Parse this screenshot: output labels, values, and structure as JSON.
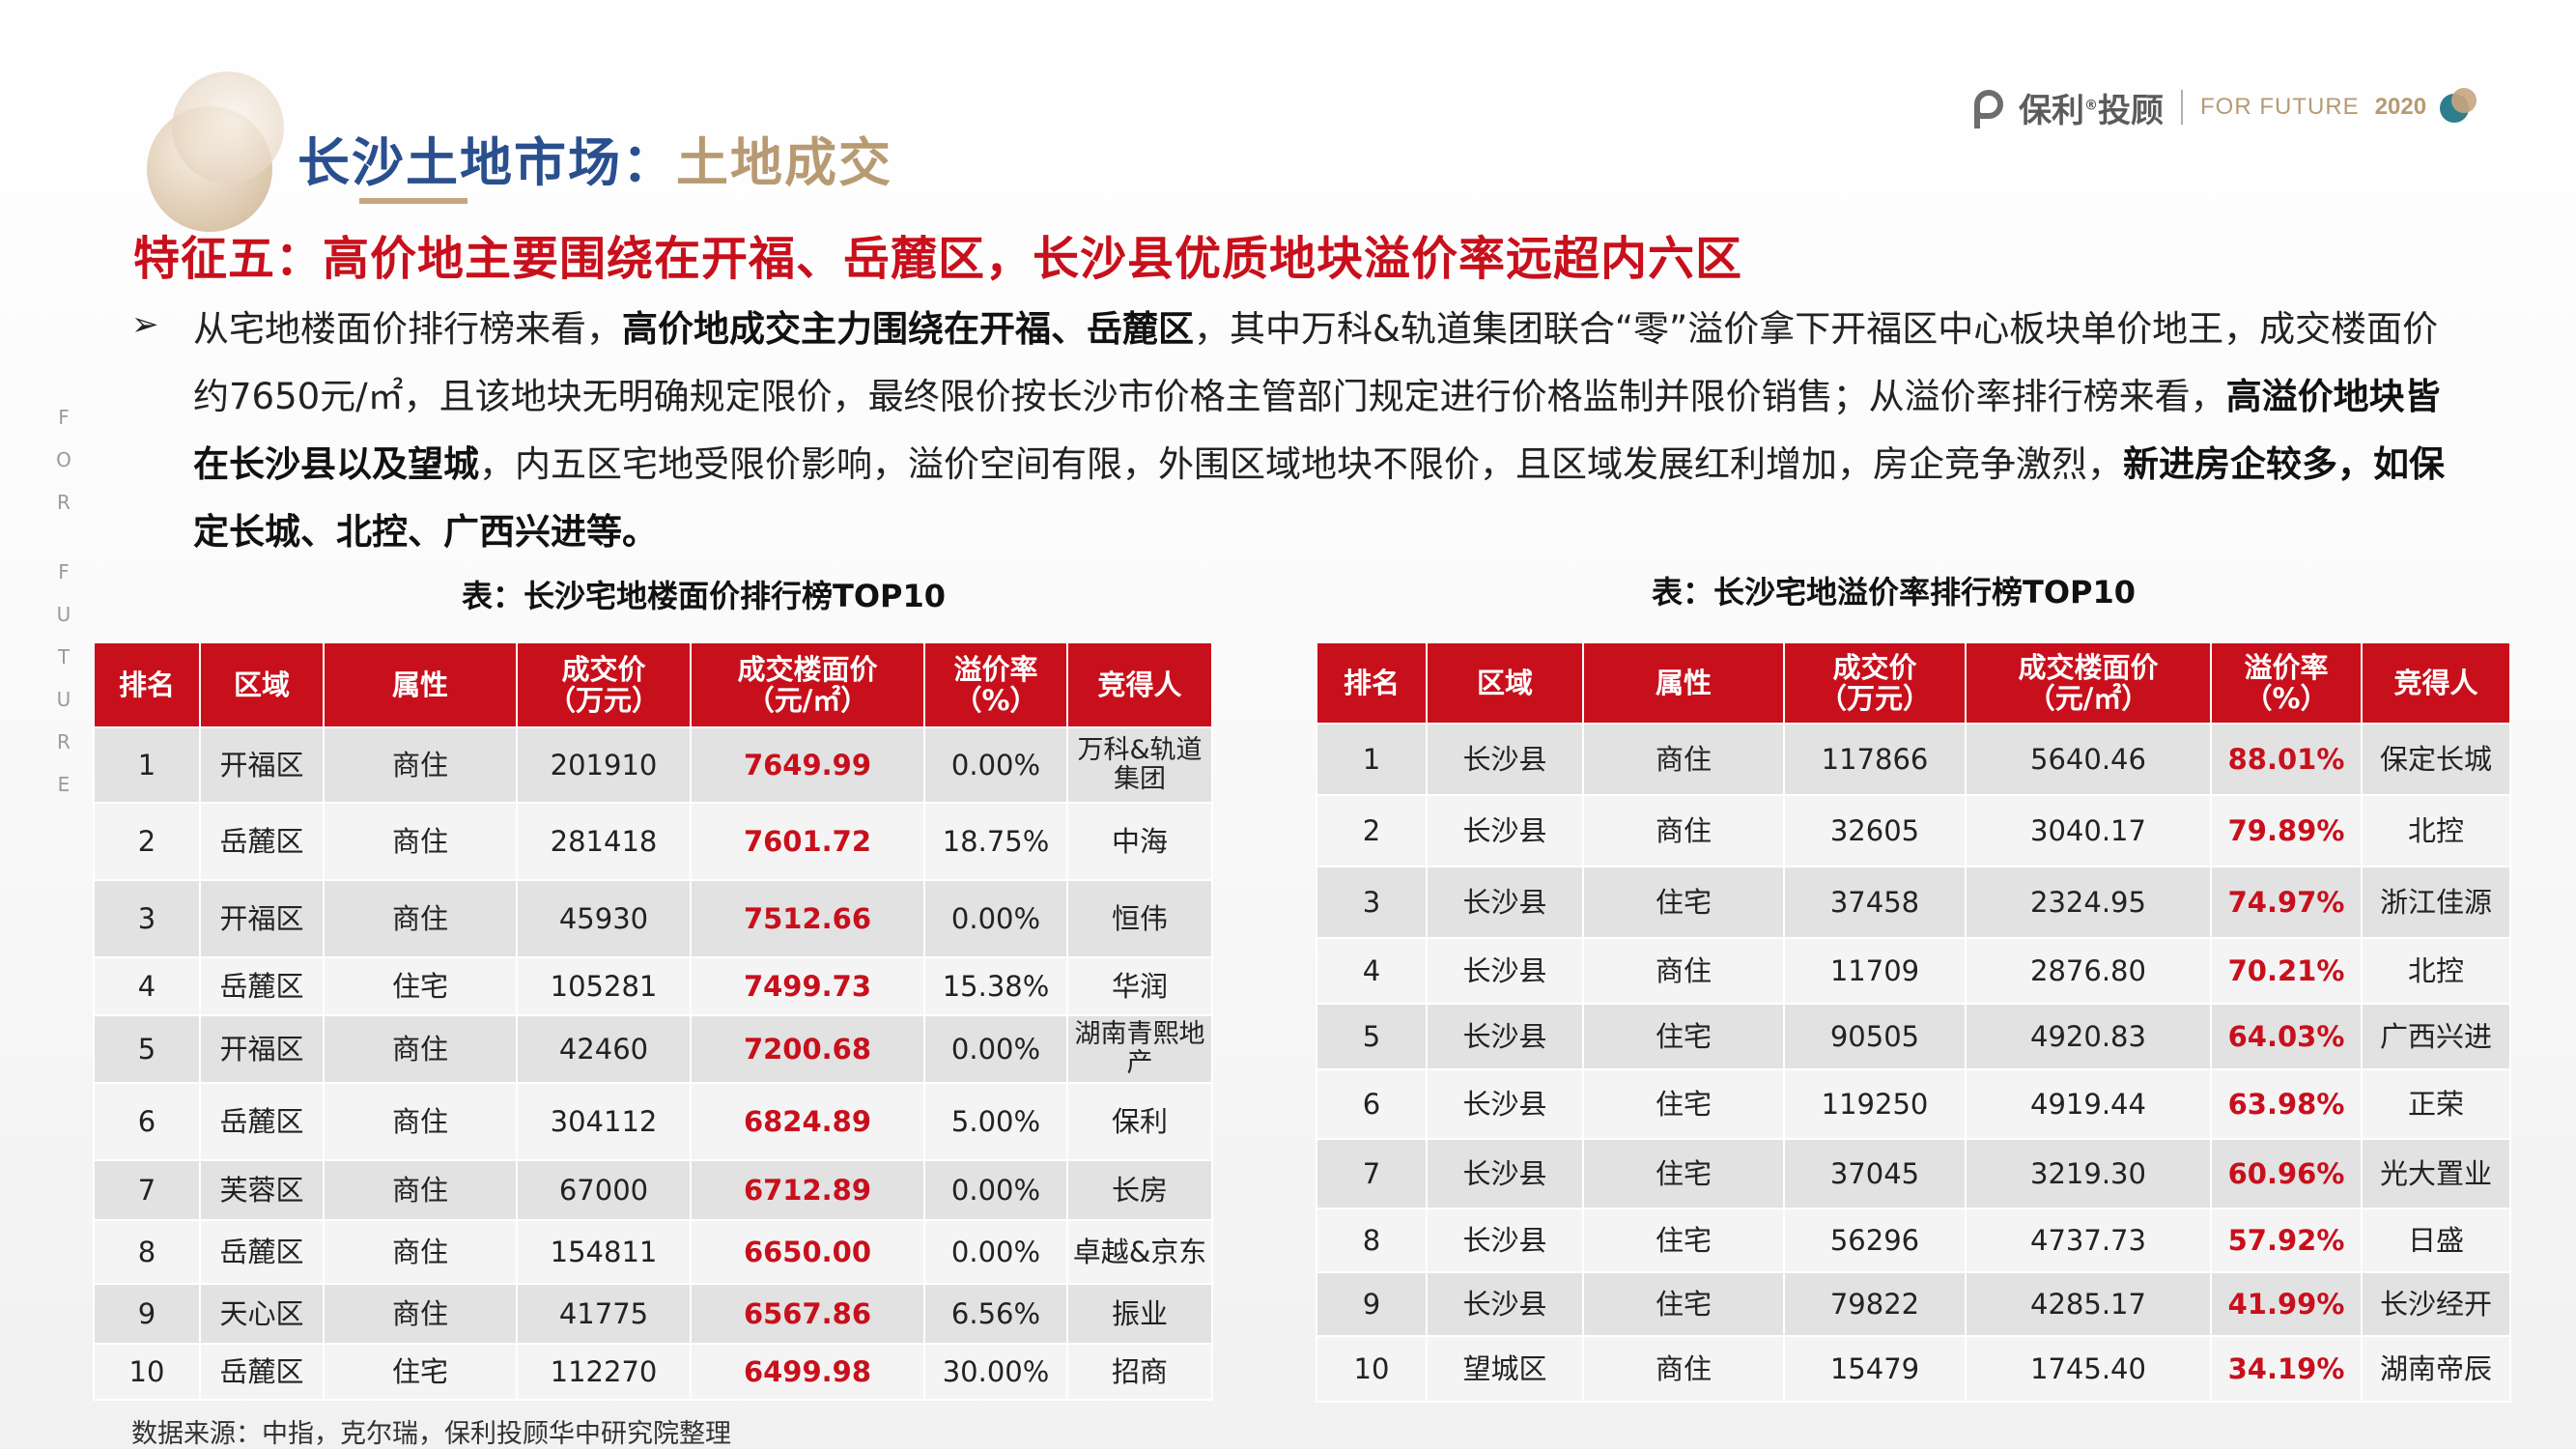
{
  "header": {
    "title_part1": "长沙土地市场：",
    "title_part2": "土地成交",
    "logo_cn": "保利",
    "logo_reg": "®",
    "logo_cn2": "投顾",
    "logo_en": "FOR FUTURE",
    "logo_year": "2020",
    "side_letters": [
      "F",
      "O",
      "R",
      "F",
      "U",
      "T",
      "U",
      "R",
      "E"
    ]
  },
  "feature_title": "特征五：高价地主要围绕在开福、岳麓区，长沙县优质地块溢价率远超内六区",
  "paragraph": {
    "seg1": "从宅地楼面价排行榜来看，",
    "seg2_bold": "高价地成交主力围绕在开福、岳麓区",
    "seg3": "，其中万科&轨道集团联合“零”溢价拿下开福区中心板块单价地王，成交楼面价约7650元/㎡，且该地块无明确规定限价，最终限价按长沙市价格主管部门规定进行价格监制并限价销售；从溢价率排行榜来看，",
    "seg4_bold": "高溢价地块皆在长沙县以及望城",
    "seg5": "，内五区宅地受限价影响，溢价空间有限，外围区域地块不限价，且区域发展红利增加，房企竞争激烈，",
    "seg6_bold": "新进房企较多，如保定长城、北控、广西兴进等。"
  },
  "table_left": {
    "caption": "表：长沙宅地楼面价排行榜TOP10",
    "headers": [
      "排名",
      "区域",
      "属性",
      "成交价\n（万元）",
      "成交楼面价\n（元/㎡）",
      "溢价率\n（%）",
      "竞得人"
    ],
    "rows": [
      [
        "1",
        "开福区",
        "商住",
        "201910",
        "7649.99",
        "0.00%",
        "万科&轨道集团"
      ],
      [
        "2",
        "岳麓区",
        "商住",
        "281418",
        "7601.72",
        "18.75%",
        "中海"
      ],
      [
        "3",
        "开福区",
        "商住",
        "45930",
        "7512.66",
        "0.00%",
        "恒伟"
      ],
      [
        "4",
        "岳麓区",
        "住宅",
        "105281",
        "7499.73",
        "15.38%",
        "华润"
      ],
      [
        "5",
        "开福区",
        "商住",
        "42460",
        "7200.68",
        "0.00%",
        "湖南青熙地产"
      ],
      [
        "6",
        "岳麓区",
        "商住",
        "304112",
        "6824.89",
        "5.00%",
        "保利"
      ],
      [
        "7",
        "芙蓉区",
        "商住",
        "67000",
        "6712.89",
        "0.00%",
        "长房"
      ],
      [
        "8",
        "岳麓区",
        "商住",
        "154811",
        "6650.00",
        "0.00%",
        "卓越&京东"
      ],
      [
        "9",
        "天心区",
        "商住",
        "41775",
        "6567.86",
        "6.56%",
        "振业"
      ],
      [
        "10",
        "岳麓区",
        "住宅",
        "112270",
        "6499.98",
        "30.00%",
        "招商"
      ]
    ]
  },
  "table_right": {
    "caption": "表：长沙宅地溢价率排行榜TOP10",
    "headers": [
      "排名",
      "区域",
      "属性",
      "成交价\n（万元）",
      "成交楼面价\n（元/㎡）",
      "溢价率\n（%）",
      "竞得人"
    ],
    "rows": [
      [
        "1",
        "长沙县",
        "商住",
        "117866",
        "5640.46",
        "88.01%",
        "保定长城"
      ],
      [
        "2",
        "长沙县",
        "商住",
        "32605",
        "3040.17",
        "79.89%",
        "北控"
      ],
      [
        "3",
        "长沙县",
        "住宅",
        "37458",
        "2324.95",
        "74.97%",
        "浙江佳源"
      ],
      [
        "4",
        "长沙县",
        "商住",
        "11709",
        "2876.80",
        "70.21%",
        "北控"
      ],
      [
        "5",
        "长沙县",
        "住宅",
        "90505",
        "4920.83",
        "64.03%",
        "广西兴进"
      ],
      [
        "6",
        "长沙县",
        "住宅",
        "119250",
        "4919.44",
        "63.98%",
        "正荣"
      ],
      [
        "7",
        "长沙县",
        "住宅",
        "37045",
        "3219.30",
        "60.96%",
        "光大置业"
      ],
      [
        "8",
        "长沙县",
        "住宅",
        "56296",
        "4737.73",
        "57.92%",
        "日盛"
      ],
      [
        "9",
        "长沙县",
        "住宅",
        "79822",
        "4285.17",
        "41.99%",
        "长沙经开"
      ],
      [
        "10",
        "望城区",
        "商住",
        "15479",
        "1745.40",
        "34.19%",
        "湖南帝辰"
      ]
    ]
  },
  "source": "数据来源：中指，克尔瑞，保利投顾华中研究院整理",
  "colors": {
    "accent_red": "#c8101c",
    "title_blue": "#2a4f8e",
    "gold": "#b89a72"
  }
}
